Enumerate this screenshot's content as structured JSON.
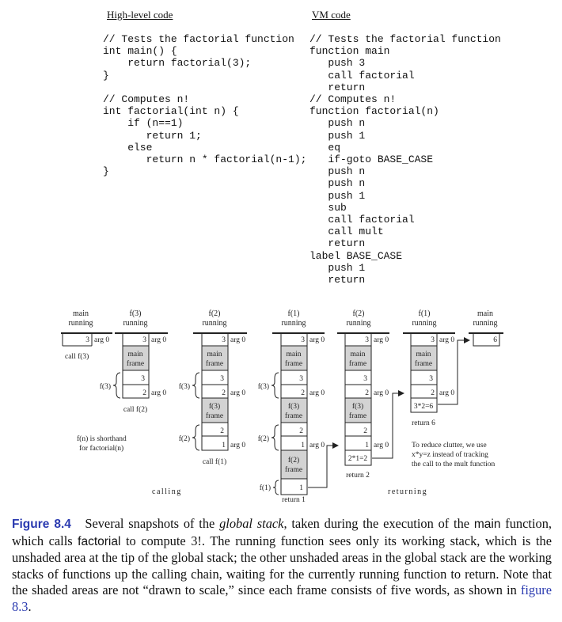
{
  "high_level": {
    "heading": "High-level code",
    "code": "// Tests the factorial function\nint main() {\n    return factorial(3);\n}\n\n// Computes n!\nint factorial(int n) {\n    if (n==1)\n       return 1;\n    else\n       return n * factorial(n-1);\n}"
  },
  "vm": {
    "heading": "VM code",
    "code": "// Tests the factorial function\nfunction main\n   push 3\n   call factorial\n   return\n// Computes n!\nfunction factorial(n)\n   push n\n   push 1\n   eq\n   if-goto BASE_CASE\n   push n\n   push n\n   push 1\n   sub\n   call factorial\n   call mult\n   return\nlabel BASE_CASE\n   push 1\n   return"
  },
  "diagram": {
    "snapshot_titles": [
      [
        "main",
        "running"
      ],
      [
        "f(3)",
        "running"
      ],
      [
        "f(2)",
        "running"
      ],
      [
        "f(1)",
        "running"
      ],
      [
        "f(2)",
        "running"
      ],
      [
        "f(1)",
        "running"
      ],
      [
        "main",
        "running"
      ]
    ],
    "cell_values": {
      "three": "3",
      "two": "2",
      "one": "1",
      "six": "6",
      "r2": "2*1=2",
      "r6": "3*2=6"
    },
    "frame_labels": {
      "main_frame": [
        "main",
        "frame"
      ],
      "f3_frame": [
        "f(3)",
        "frame"
      ],
      "f2_frame": [
        "f(2)",
        "frame"
      ]
    },
    "arg_label": "arg 0",
    "brace_labels": {
      "f3": "f(3)",
      "f2": "f(2)",
      "f1": "f(1)"
    },
    "call_labels": {
      "c3": "call f(3)",
      "c2": "call f(2)",
      "c1": "call f(1)"
    },
    "return_labels": {
      "r1": "return 1",
      "r2": "return 2",
      "r6": "return 6"
    },
    "phase_labels": {
      "calling": "calling",
      "returning": "returning"
    },
    "note_shorthand": [
      "f(n) is shorthand",
      "for factorial(n)"
    ],
    "note_clutter": [
      "To reduce clutter, we use",
      "x*y=z instead of tracking",
      "the call to the mult function"
    ],
    "colors": {
      "shaded": "#d3d3d3",
      "line": "#222222"
    }
  },
  "caption": {
    "label": "Figure 8.4",
    "t1": "Several snapshots of the ",
    "t2_italic": "global stack",
    "t3": ", taken during the execution of the ",
    "t4_code": "main",
    "t5": " function, which calls ",
    "t6_code": "factorial",
    "t7": " to compute 3!. The running function sees only its working stack, which is the unshaded area at the tip of the global stack; the other unshaded areas in the global stack are the working stacks of functions up the calling chain, waiting for the currently running function to return. Note that the shaded areas are not “drawn to scale,” since each frame consists of five words, as shown in ",
    "t8_link": "figure 8.3",
    "t9": "."
  }
}
